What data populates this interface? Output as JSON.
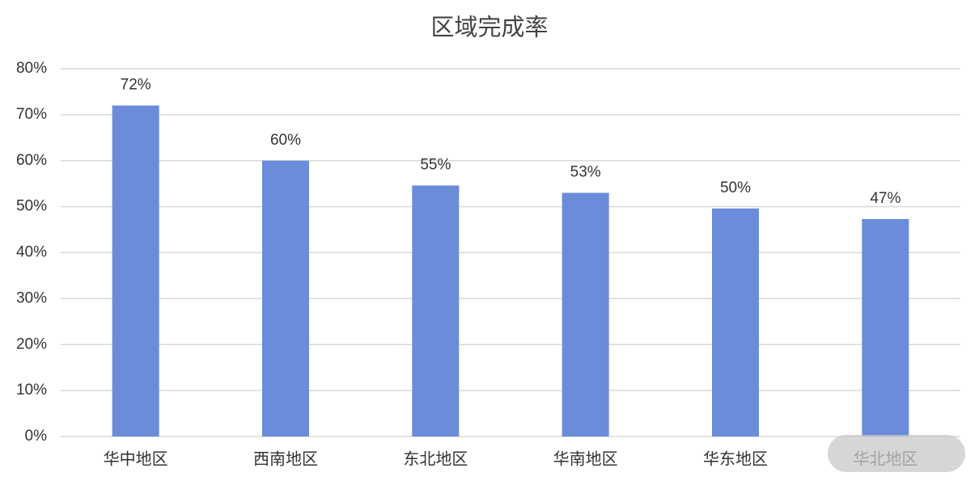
{
  "chart_data": {
    "type": "bar",
    "title": "区域完成率",
    "categories": [
      "华中地区",
      "西南地区",
      "东北地区",
      "华南地区",
      "华东地区",
      "华北地区"
    ],
    "values": [
      72,
      60,
      54.6,
      53,
      49.6,
      47.3
    ],
    "value_labels": [
      "72%",
      "60%",
      "55%",
      "53%",
      "50%",
      "47%"
    ],
    "color": "#6b8cd9",
    "ylim": [
      0,
      80
    ],
    "yticks": [
      {
        "value": 0,
        "label": "0%"
      },
      {
        "value": 10,
        "label": "10%"
      },
      {
        "value": 20,
        "label": "20%"
      },
      {
        "value": 30,
        "label": "30%"
      },
      {
        "value": 40,
        "label": "40%"
      },
      {
        "value": 50,
        "label": "50%"
      },
      {
        "value": 60,
        "label": "60%"
      },
      {
        "value": 70,
        "label": "70%"
      },
      {
        "value": 80,
        "label": "80%"
      }
    ],
    "grid": true
  }
}
